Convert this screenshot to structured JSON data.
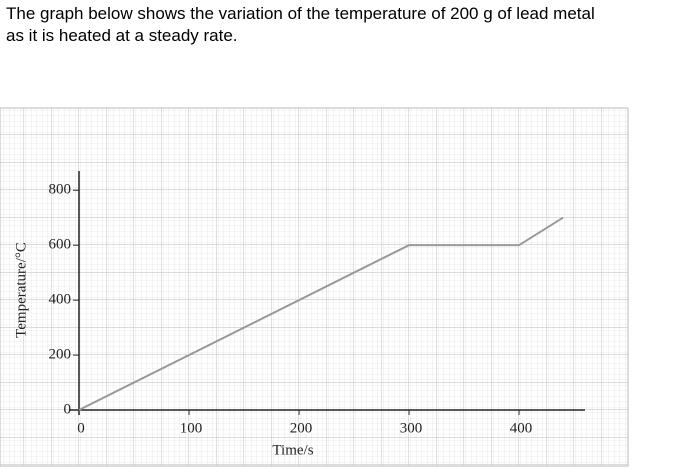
{
  "question": {
    "line1": "The graph below shows the variation of the temperature of 200 g of lead metal",
    "line2": "as it is heated at a steady rate."
  },
  "chart_data": {
    "type": "line",
    "x_label": "Time/s",
    "y_label": "Temperature/°C",
    "x": [
      0,
      300,
      400,
      440
    ],
    "values": [
      0,
      600,
      600,
      700
    ],
    "color": "#999999",
    "xlim": [
      0,
      460
    ],
    "ylim": [
      0,
      870
    ],
    "xticks": [
      0,
      100,
      200,
      300,
      400
    ],
    "yticks": [
      0,
      200,
      400,
      600,
      800
    ]
  }
}
